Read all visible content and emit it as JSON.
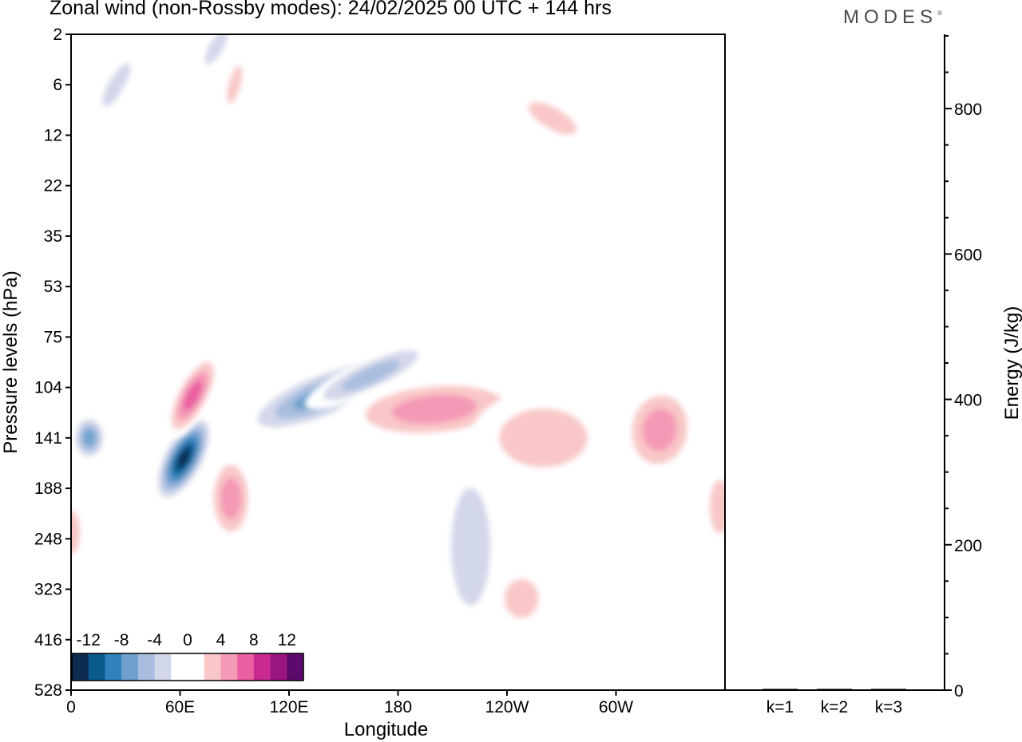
{
  "title": "Zonal wind (non-Rossby modes):  24/02/2025  00 UTC  + 144 hrs",
  "brand": "MODES",
  "brand_mark": "®",
  "chart_data": [
    {
      "type": "heatmap",
      "title": "Zonal wind (non-Rossby modes):  24/02/2025  00 UTC  + 144 hrs",
      "xlabel": "Longitude",
      "ylabel": "Pressure levels (hPa)",
      "x_tick_labels": [
        "0",
        "60E",
        "120E",
        "180",
        "120W",
        "60W"
      ],
      "x_ticks_deg": [
        0,
        60,
        120,
        180,
        240,
        300
      ],
      "xlim_deg": [
        0,
        360
      ],
      "y_tick_labels": [
        "2",
        "6",
        "12",
        "22",
        "35",
        "53",
        "75",
        "104",
        "141",
        "188",
        "248",
        "323",
        "416",
        "528"
      ],
      "colorbar": {
        "labels": [
          "-12",
          "-8",
          "-4",
          "0",
          "4",
          "8",
          "12"
        ],
        "label_values": [
          -12,
          -8,
          -4,
          0,
          4,
          8,
          12
        ],
        "colors": [
          "#0d2c4f",
          "#0b5a8c",
          "#2f82bb",
          "#6fa0cd",
          "#a9bedf",
          "#d3d7ea",
          "#ffffff",
          "#ffffff",
          "#f9c7c7",
          "#f49ab6",
          "#ea5fa2",
          "#c82a8f",
          "#9b1581",
          "#5c0a6c"
        ]
      },
      "features": [
        {
          "sign": "neg",
          "peak": -14,
          "lon": 62,
          "level": 160
        },
        {
          "sign": "neg",
          "peak": -9,
          "lon": 10,
          "level": 141
        },
        {
          "sign": "neg",
          "peak": -9,
          "lon": 138,
          "level": 110
        },
        {
          "sign": "neg",
          "peak": -6,
          "lon": 165,
          "level": 97
        },
        {
          "sign": "neg",
          "peak": -4,
          "lon": 220,
          "level": 260
        },
        {
          "sign": "neg",
          "peak": -5,
          "lon": 25,
          "level": 6
        },
        {
          "sign": "neg",
          "peak": -5,
          "lon": 80,
          "level": 3
        },
        {
          "sign": "pos",
          "peak": 9,
          "lon": 67,
          "level": 110
        },
        {
          "sign": "pos",
          "peak": 7,
          "lon": 88,
          "level": 200
        },
        {
          "sign": "pos",
          "peak": 6,
          "lon": 200,
          "level": 120
        },
        {
          "sign": "pos",
          "peak": 6,
          "lon": 324,
          "level": 135
        },
        {
          "sign": "pos",
          "peak": 4,
          "lon": 260,
          "level": 141
        },
        {
          "sign": "pos",
          "peak": 5,
          "lon": 357,
          "level": 210
        },
        {
          "sign": "pos",
          "peak": 4,
          "lon": 0,
          "level": 240
        },
        {
          "sign": "pos",
          "peak": 5,
          "lon": 265,
          "level": 10
        },
        {
          "sign": "pos",
          "peak": 4,
          "lon": 90,
          "level": 6
        },
        {
          "sign": "pos",
          "peak": 4,
          "lon": 248,
          "level": 340
        }
      ]
    },
    {
      "type": "bar",
      "categories": [
        "k=1",
        "k=2",
        "k=3"
      ],
      "values": [
        2,
        2,
        2
      ],
      "ylabel": "Energy (J/kg)",
      "ylim": [
        0,
        900
      ],
      "y_tick_labels": [
        "0",
        "200",
        "400",
        "600",
        "800"
      ],
      "y_ticks": [
        0,
        200,
        400,
        600,
        800
      ],
      "y_minor_step": 50
    }
  ]
}
